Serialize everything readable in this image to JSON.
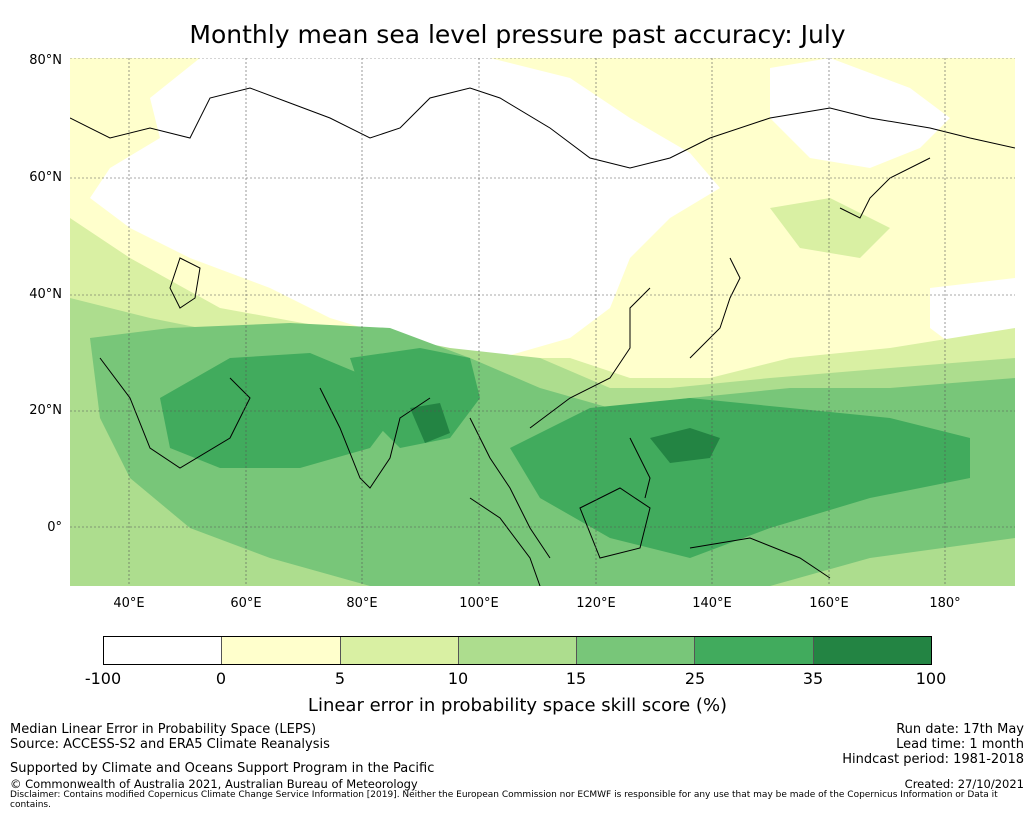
{
  "title": "Monthly mean sea level pressure past accuracy: July",
  "map": {
    "latitude_labels": [
      "80°N",
      "60°N",
      "40°N",
      "20°N",
      "0°"
    ],
    "longitude_labels": [
      "40°E",
      "60°E",
      "80°E",
      "100°E",
      "120°E",
      "140°E",
      "160°E",
      "180°"
    ]
  },
  "colorbar": {
    "label": "Linear error in probability space skill score (%)",
    "ticks": [
      "-100",
      "0",
      "5",
      "10",
      "15",
      "25",
      "35",
      "100"
    ],
    "colors": [
      "#ffffff",
      "#ffffcc",
      "#d9f0a3",
      "#addd8e",
      "#78c679",
      "#41ab5d",
      "#238443"
    ]
  },
  "footer": {
    "left_line1": "Median Linear Error in Probability Space (LEPS)",
    "left_line2": "Source: ACCESS-S2 and ERA5 Climate Reanalysis",
    "supported": "Supported by Climate and Oceans Support Program in the Pacific",
    "copyright": "© Commonwealth of Australia 2021, Australian Bureau of Meteorology",
    "run_date": "Run date: 17th May",
    "lead_time": "Lead time: 1 month",
    "hindcast": "Hindcast period: 1981-2018",
    "created": "Created: 27/10/2021",
    "disclaimer": "Disclaimer: Contains modified Copernicus Climate Change Service Information [2019]. Neither the European Commission nor ECMWF is responsible for any use that may be made of the Copernicus Information or Data it contains."
  }
}
